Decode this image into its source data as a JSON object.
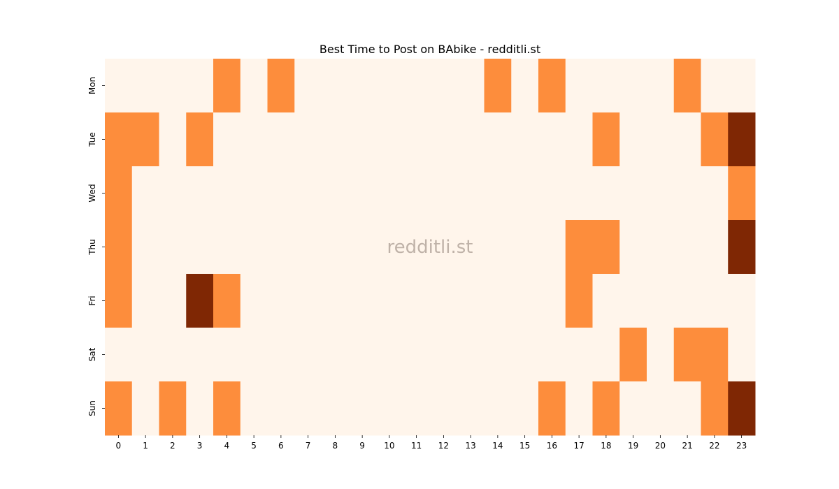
{
  "chart_data": {
    "type": "heatmap",
    "title": "Best Time to Post on BAbike - redditli.st",
    "watermark": "redditli.st",
    "x_labels": [
      "0",
      "1",
      "2",
      "3",
      "4",
      "5",
      "6",
      "7",
      "8",
      "9",
      "10",
      "11",
      "12",
      "13",
      "14",
      "15",
      "16",
      "17",
      "18",
      "19",
      "20",
      "21",
      "22",
      "23"
    ],
    "y_labels": [
      "Mon",
      "Tue",
      "Wed",
      "Thu",
      "Fri",
      "Sat",
      "Sun"
    ],
    "xlabel": "",
    "ylabel": "",
    "colorbar": false,
    "values": [
      [
        0,
        0,
        0,
        0,
        1,
        0,
        1,
        0,
        0,
        0,
        0,
        0,
        0,
        0,
        1,
        0,
        1,
        0,
        0,
        0,
        0,
        1,
        0,
        0
      ],
      [
        1,
        1,
        0,
        1,
        0,
        0,
        0,
        0,
        0,
        0,
        0,
        0,
        0,
        0,
        0,
        0,
        0,
        0,
        1,
        0,
        0,
        0,
        1,
        2
      ],
      [
        1,
        0,
        0,
        0,
        0,
        0,
        0,
        0,
        0,
        0,
        0,
        0,
        0,
        0,
        0,
        0,
        0,
        0,
        0,
        0,
        0,
        0,
        0,
        1
      ],
      [
        1,
        0,
        0,
        0,
        0,
        0,
        0,
        0,
        0,
        0,
        0,
        0,
        0,
        0,
        0,
        0,
        0,
        1,
        1,
        0,
        0,
        0,
        0,
        2
      ],
      [
        1,
        0,
        0,
        2,
        1,
        0,
        0,
        0,
        0,
        0,
        0,
        0,
        0,
        0,
        0,
        0,
        0,
        1,
        0,
        0,
        0,
        0,
        0,
        0
      ],
      [
        0,
        0,
        0,
        0,
        0,
        0,
        0,
        0,
        0,
        0,
        0,
        0,
        0,
        0,
        0,
        0,
        0,
        0,
        0,
        1,
        0,
        1,
        1,
        0
      ],
      [
        1,
        0,
        1,
        0,
        1,
        0,
        0,
        0,
        0,
        0,
        0,
        0,
        0,
        0,
        0,
        0,
        1,
        0,
        1,
        0,
        0,
        0,
        1,
        2
      ]
    ],
    "color_scale": {
      "0": "#fff5eb",
      "1": "#fd8d3c",
      "2": "#7f2704"
    }
  }
}
